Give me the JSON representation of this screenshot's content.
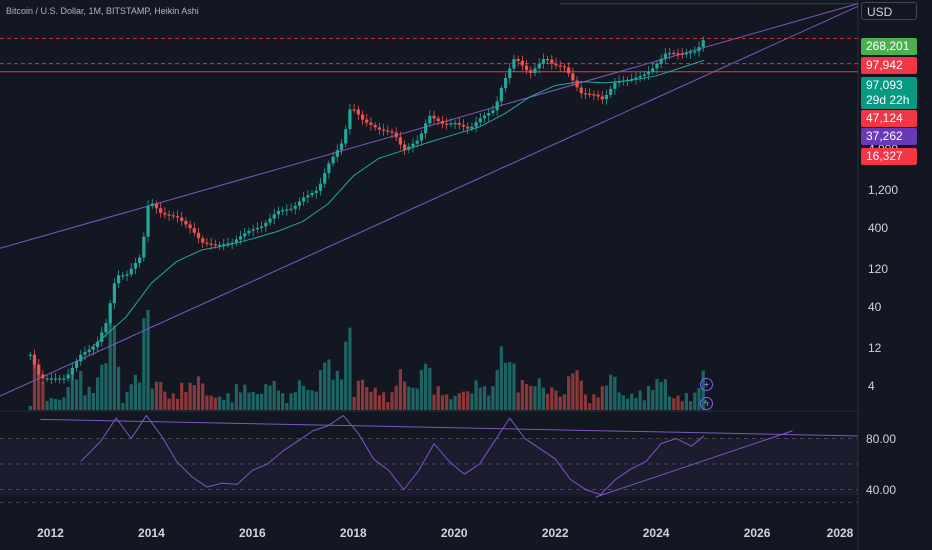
{
  "header": {
    "title": "Bitcoin / U.S. Dollar, 1M, BITSTAMP, Heikin Ashi"
  },
  "axis": {
    "currency": "USD",
    "price_ticks": [
      "4,000",
      "1,200",
      "400",
      "120",
      "40",
      "12",
      "4"
    ],
    "rsi_ticks": [
      "80.00",
      "40.00"
    ],
    "x_ticks": [
      "2012",
      "2014",
      "2016",
      "2018",
      "2020",
      "2022",
      "2024",
      "2026",
      "2028"
    ]
  },
  "price_tags": [
    {
      "label": "268,201",
      "color": "#4caf50"
    },
    {
      "label": "97,942",
      "color": "#f23645"
    },
    {
      "label": "97,093",
      "sublabel": "29d 22h",
      "color": "#089981"
    },
    {
      "label": "47,124",
      "color": "#f23645"
    },
    {
      "label": "37,262",
      "color": "#673ab7"
    },
    {
      "label": "16,327",
      "color": "#f23645"
    }
  ],
  "icons": [
    "plus-icon",
    "lightning-icon"
  ],
  "colors": {
    "up": "#26a69a",
    "down": "#ef5350",
    "channel": "#7e57c2",
    "ma": "#26a69a",
    "rsi": "#7e57c2",
    "hline": "#f23645",
    "bg": "#131722"
  },
  "chart_data": {
    "type": "candlestick",
    "chart_style": "Heikin Ashi",
    "y_scale": "log",
    "x_range": [
      2011.0,
      2028.0
    ],
    "y_range": [
      2,
      300000
    ],
    "price_points": [
      [
        2011.6,
        10
      ],
      [
        2011.8,
        5
      ],
      [
        2012.0,
        5
      ],
      [
        2012.3,
        5
      ],
      [
        2012.6,
        10
      ],
      [
        2012.9,
        13
      ],
      [
        2013.1,
        25
      ],
      [
        2013.3,
        100
      ],
      [
        2013.5,
        100
      ],
      [
        2013.8,
        180
      ],
      [
        2013.95,
        900
      ],
      [
        2014.2,
        600
      ],
      [
        2014.5,
        550
      ],
      [
        2014.8,
        380
      ],
      [
        2015.0,
        260
      ],
      [
        2015.3,
        240
      ],
      [
        2015.6,
        260
      ],
      [
        2015.9,
        360
      ],
      [
        2016.2,
        420
      ],
      [
        2016.5,
        650
      ],
      [
        2016.8,
        700
      ],
      [
        2017.0,
        950
      ],
      [
        2017.3,
        1200
      ],
      [
        2017.5,
        2500
      ],
      [
        2017.8,
        5000
      ],
      [
        2017.95,
        14000
      ],
      [
        2018.2,
        9000
      ],
      [
        2018.5,
        7000
      ],
      [
        2018.8,
        6300
      ],
      [
        2019.0,
        3800
      ],
      [
        2019.3,
        5200
      ],
      [
        2019.5,
        10500
      ],
      [
        2019.8,
        8000
      ],
      [
        2020.0,
        8500
      ],
      [
        2020.3,
        7000
      ],
      [
        2020.5,
        9500
      ],
      [
        2020.8,
        12500
      ],
      [
        2020.95,
        25000
      ],
      [
        2021.2,
        57000
      ],
      [
        2021.5,
        35000
      ],
      [
        2021.8,
        57000
      ],
      [
        2021.95,
        46000
      ],
      [
        2022.2,
        42000
      ],
      [
        2022.5,
        20000
      ],
      [
        2022.8,
        19000
      ],
      [
        2022.95,
        16500
      ],
      [
        2023.2,
        28000
      ],
      [
        2023.5,
        30000
      ],
      [
        2023.8,
        35000
      ],
      [
        2023.95,
        42000
      ],
      [
        2024.2,
        65000
      ],
      [
        2024.5,
        62000
      ],
      [
        2024.8,
        68000
      ],
      [
        2024.95,
        97093
      ]
    ],
    "moving_average": [
      [
        2012.8,
        12
      ],
      [
        2013.5,
        30
      ],
      [
        2014.0,
        80
      ],
      [
        2014.5,
        150
      ],
      [
        2015.0,
        210
      ],
      [
        2015.5,
        240
      ],
      [
        2016.0,
        290
      ],
      [
        2016.5,
        360
      ],
      [
        2017.0,
        480
      ],
      [
        2017.5,
        800
      ],
      [
        2018.0,
        1800
      ],
      [
        2018.5,
        3000
      ],
      [
        2019.0,
        3800
      ],
      [
        2019.5,
        4800
      ],
      [
        2020.0,
        6000
      ],
      [
        2020.5,
        7500
      ],
      [
        2021.0,
        11000
      ],
      [
        2021.5,
        18000
      ],
      [
        2022.0,
        25000
      ],
      [
        2022.5,
        28000
      ],
      [
        2023.0,
        27000
      ],
      [
        2023.5,
        29000
      ],
      [
        2024.0,
        33000
      ],
      [
        2024.5,
        42000
      ],
      [
        2024.95,
        52000
      ]
    ],
    "channel_lines": [
      {
        "p1": [
          2011.0,
          220
        ],
        "p2": [
          2028.0,
          270000
        ]
      },
      {
        "p1": [
          2011.0,
          3
        ],
        "p2": [
          2028.0,
          250000
        ]
      }
    ],
    "horizontal_levels": [
      97942,
      47124,
      37262,
      268201
    ],
    "rsi": {
      "range": [
        20,
        100
      ],
      "levels": [
        80,
        40
      ],
      "points": [
        [
          2012.6,
          62
        ],
        [
          2013.0,
          78
        ],
        [
          2013.3,
          96
        ],
        [
          2013.6,
          80
        ],
        [
          2013.9,
          98
        ],
        [
          2014.2,
          82
        ],
        [
          2014.5,
          62
        ],
        [
          2014.8,
          50
        ],
        [
          2015.1,
          42
        ],
        [
          2015.4,
          45
        ],
        [
          2015.7,
          44
        ],
        [
          2016.0,
          55
        ],
        [
          2016.3,
          60
        ],
        [
          2016.6,
          70
        ],
        [
          2016.9,
          78
        ],
        [
          2017.2,
          86
        ],
        [
          2017.5,
          90
        ],
        [
          2017.8,
          98
        ],
        [
          2018.1,
          84
        ],
        [
          2018.4,
          64
        ],
        [
          2018.7,
          55
        ],
        [
          2019.0,
          40
        ],
        [
          2019.3,
          55
        ],
        [
          2019.6,
          76
        ],
        [
          2019.9,
          62
        ],
        [
          2020.2,
          52
        ],
        [
          2020.5,
          60
        ],
        [
          2020.8,
          78
        ],
        [
          2021.1,
          96
        ],
        [
          2021.4,
          80
        ],
        [
          2021.7,
          72
        ],
        [
          2022.0,
          64
        ],
        [
          2022.3,
          48
        ],
        [
          2022.6,
          40
        ],
        [
          2022.9,
          36
        ],
        [
          2023.2,
          48
        ],
        [
          2023.5,
          56
        ],
        [
          2023.8,
          62
        ],
        [
          2024.1,
          76
        ],
        [
          2024.4,
          80
        ],
        [
          2024.7,
          74
        ],
        [
          2024.95,
          82
        ]
      ],
      "trend_upper": {
        "p1": [
          2011.8,
          95
        ],
        "p2": [
          2028.0,
          82
        ]
      },
      "trend_lower": {
        "p1": [
          2022.8,
          34
        ],
        "p2": [
          2026.7,
          86
        ]
      }
    }
  }
}
